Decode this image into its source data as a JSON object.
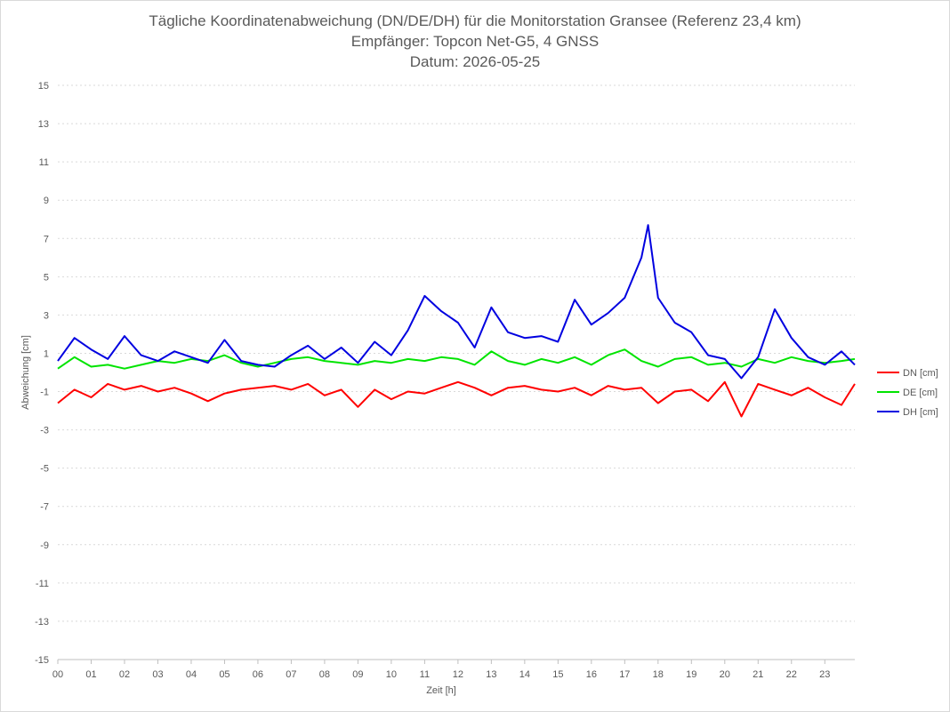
{
  "chart_data": {
    "type": "line",
    "title_lines": [
      "Tägliche Koordinatenabweichung (DN/DE/DH) für die Monitorstation Gransee (Referenz 23,4 km)",
      "Empfänger: Topcon Net-G5, 4 GNSS",
      "Datum: 2026-05-25"
    ],
    "xlabel": "Zeit [h]",
    "ylabel": "Abweichung [cm]",
    "x_ticks": [
      "00",
      "01",
      "02",
      "03",
      "04",
      "05",
      "06",
      "07",
      "08",
      "09",
      "10",
      "11",
      "12",
      "13",
      "14",
      "15",
      "16",
      "17",
      "18",
      "19",
      "20",
      "21",
      "22",
      "23"
    ],
    "y_ticks": [
      15,
      13,
      11,
      9,
      7,
      5,
      3,
      1,
      -1,
      -3,
      -5,
      -7,
      -9,
      -11,
      -13,
      -15
    ],
    "xlim": [
      0,
      23.9
    ],
    "ylim": [
      -15,
      15
    ],
    "grid": true,
    "legend_position": "right",
    "series": [
      {
        "name": "DN [cm]",
        "color": "#ff0000",
        "x": [
          0.0,
          0.5,
          1.0,
          1.5,
          2.0,
          2.5,
          3.0,
          3.5,
          4.0,
          4.5,
          5.0,
          5.5,
          6.0,
          6.5,
          7.0,
          7.5,
          8.0,
          8.5,
          9.0,
          9.5,
          10.0,
          10.5,
          11.0,
          11.5,
          12.0,
          12.5,
          13.0,
          13.5,
          14.0,
          14.5,
          15.0,
          15.5,
          16.0,
          16.5,
          17.0,
          17.5,
          18.0,
          18.5,
          19.0,
          19.5,
          20.0,
          20.5,
          21.0,
          21.5,
          22.0,
          22.5,
          23.0,
          23.5,
          23.9
        ],
        "y": [
          -1.6,
          -0.9,
          -1.3,
          -0.6,
          -0.9,
          -0.7,
          -1.0,
          -0.8,
          -1.1,
          -1.5,
          -1.1,
          -0.9,
          -0.8,
          -0.7,
          -0.9,
          -0.6,
          -1.2,
          -0.9,
          -1.8,
          -0.9,
          -1.4,
          -1.0,
          -1.1,
          -0.8,
          -0.5,
          -0.8,
          -1.2,
          -0.8,
          -0.7,
          -0.9,
          -1.0,
          -0.8,
          -1.2,
          -0.7,
          -0.9,
          -0.8,
          -1.6,
          -1.0,
          -0.9,
          -1.5,
          -0.5,
          -2.3,
          -0.6,
          -0.9,
          -1.2,
          -0.8,
          -1.3,
          -1.7,
          -0.6
        ]
      },
      {
        "name": "DE [cm]",
        "color": "#00e400",
        "x": [
          0.0,
          0.5,
          1.0,
          1.5,
          2.0,
          2.5,
          3.0,
          3.5,
          4.0,
          4.5,
          5.0,
          5.5,
          6.0,
          6.5,
          7.0,
          7.5,
          8.0,
          8.5,
          9.0,
          9.5,
          10.0,
          10.5,
          11.0,
          11.5,
          12.0,
          12.5,
          13.0,
          13.5,
          14.0,
          14.5,
          15.0,
          15.5,
          16.0,
          16.5,
          17.0,
          17.5,
          18.0,
          18.5,
          19.0,
          19.5,
          20.0,
          20.5,
          21.0,
          21.5,
          22.0,
          22.5,
          23.0,
          23.5,
          23.9
        ],
        "y": [
          0.2,
          0.8,
          0.3,
          0.4,
          0.2,
          0.4,
          0.6,
          0.5,
          0.7,
          0.6,
          0.9,
          0.5,
          0.3,
          0.5,
          0.7,
          0.8,
          0.6,
          0.5,
          0.4,
          0.6,
          0.5,
          0.7,
          0.6,
          0.8,
          0.7,
          0.4,
          1.1,
          0.6,
          0.4,
          0.7,
          0.5,
          0.8,
          0.4,
          0.9,
          1.2,
          0.6,
          0.3,
          0.7,
          0.8,
          0.4,
          0.5,
          0.3,
          0.7,
          0.5,
          0.8,
          0.6,
          0.5,
          0.6,
          0.7
        ]
      },
      {
        "name": "DH [cm]",
        "color": "#0000e0",
        "x": [
          0.0,
          0.5,
          1.0,
          1.5,
          2.0,
          2.5,
          3.0,
          3.5,
          4.0,
          4.5,
          5.0,
          5.5,
          6.0,
          6.5,
          7.0,
          7.5,
          8.0,
          8.5,
          9.0,
          9.5,
          10.0,
          10.5,
          11.0,
          11.5,
          12.0,
          12.5,
          13.0,
          13.5,
          14.0,
          14.5,
          15.0,
          15.5,
          16.0,
          16.5,
          17.0,
          17.5,
          17.7,
          18.0,
          18.5,
          19.0,
          19.5,
          20.0,
          20.5,
          21.0,
          21.5,
          22.0,
          22.5,
          23.0,
          23.5,
          23.9
        ],
        "y": [
          0.6,
          1.8,
          1.2,
          0.7,
          1.9,
          0.9,
          0.6,
          1.1,
          0.8,
          0.5,
          1.7,
          0.6,
          0.4,
          0.3,
          0.9,
          1.4,
          0.7,
          1.3,
          0.5,
          1.6,
          0.9,
          2.2,
          4.0,
          3.2,
          2.6,
          1.3,
          3.4,
          2.1,
          1.8,
          1.9,
          1.6,
          3.8,
          2.5,
          3.1,
          3.9,
          6.0,
          7.7,
          3.9,
          2.6,
          2.1,
          0.9,
          0.7,
          -0.3,
          0.8,
          3.3,
          1.8,
          0.8,
          0.4,
          1.1,
          0.4
        ]
      }
    ]
  }
}
